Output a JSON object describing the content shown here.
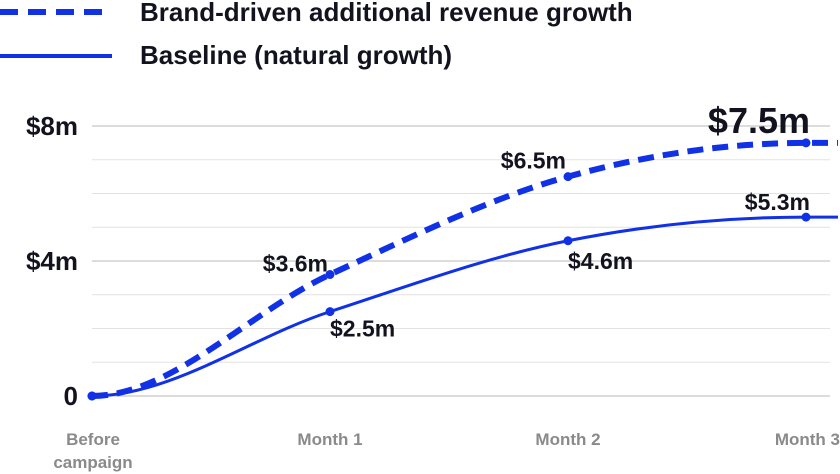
{
  "chart_data": {
    "type": "line",
    "x": [
      "Before campaign",
      "Month 1",
      "Month 2",
      "Month 3"
    ],
    "x_tick_lines": [
      [
        "Before",
        "campaign"
      ],
      [
        "Month 1"
      ],
      [
        "Month 2"
      ],
      [
        "Month 3"
      ]
    ],
    "y_ticks": [
      0,
      4,
      8
    ],
    "y_tick_labels": [
      "0",
      "$4m",
      "$8m"
    ],
    "ylim": [
      0,
      8
    ],
    "grid": true,
    "legend_position": "top-left",
    "series": [
      {
        "name": "Brand-driven additional revenue growth",
        "style": "dashed",
        "values": [
          0,
          3.6,
          6.5,
          7.5
        ],
        "labels": [
          "",
          "$3.6m",
          "$6.5m",
          "$7.5m"
        ]
      },
      {
        "name": "Baseline (natural growth)",
        "style": "solid",
        "values": [
          0,
          2.5,
          4.6,
          5.3
        ],
        "labels": [
          "",
          "$2.5m",
          "$4.6m",
          "$5.3m"
        ]
      }
    ],
    "colors": {
      "line": "#1131e6",
      "text": "#13131f",
      "axis_text": "#8a8a8a",
      "grid": "#d9d9d9"
    }
  }
}
